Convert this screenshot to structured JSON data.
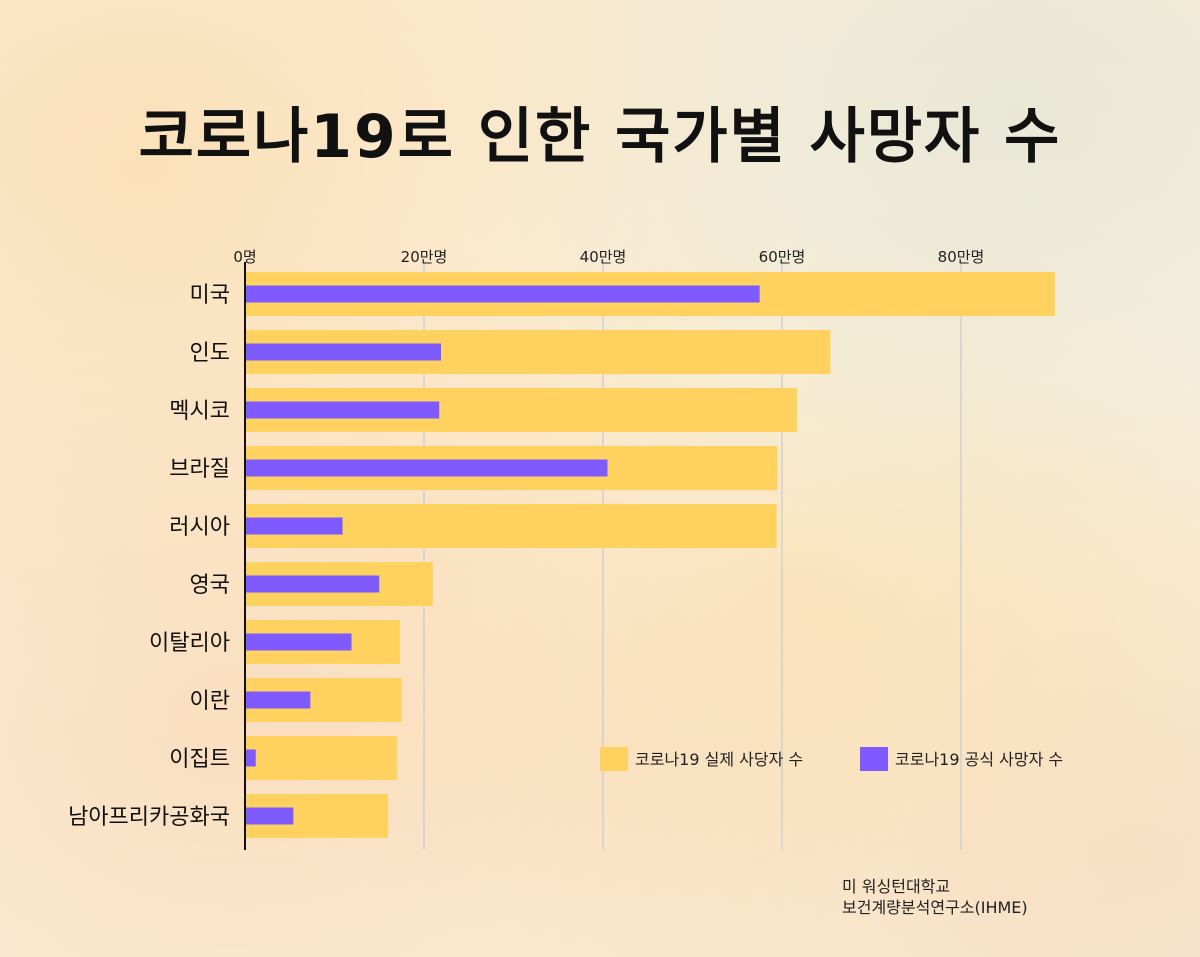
{
  "title": "코로나19로 인한 국가별 사망자 수",
  "source": [
    "미 워싱턴대학교",
    "보건계량분석연구소(IHME)"
  ],
  "colors": {
    "estimated": "#ffd15e",
    "official": "#7f5aff",
    "axis": "#111111",
    "grid": "#d0d0d0"
  },
  "chart_data": {
    "type": "bar",
    "orientation": "horizontal",
    "categories": [
      "미국",
      "인도",
      "멕시코",
      "브라질",
      "러시아",
      "영국",
      "이탈리아",
      "이란",
      "이집트",
      "남아프리카공화국"
    ],
    "series": [
      {
        "name": "코로나19 실제 사당자 수",
        "values": [
          905000,
          654000,
          617000,
          595000,
          594000,
          210000,
          173000,
          175000,
          170000,
          160000
        ]
      },
      {
        "name": "코로나19 공식 사망자 수",
        "values": [
          575000,
          219000,
          217000,
          405000,
          109000,
          150000,
          119000,
          73000,
          12000,
          54000
        ]
      }
    ],
    "x_ticks": [
      {
        "value": 0,
        "label": "0명"
      },
      {
        "value": 200000,
        "label": "20만명"
      },
      {
        "value": 400000,
        "label": "40만명"
      },
      {
        "value": 600000,
        "label": "60만명"
      },
      {
        "value": 800000,
        "label": "80만명"
      }
    ],
    "xlim": [
      0,
      1000000
    ],
    "grid": true,
    "legend_position": "bottom-right"
  }
}
